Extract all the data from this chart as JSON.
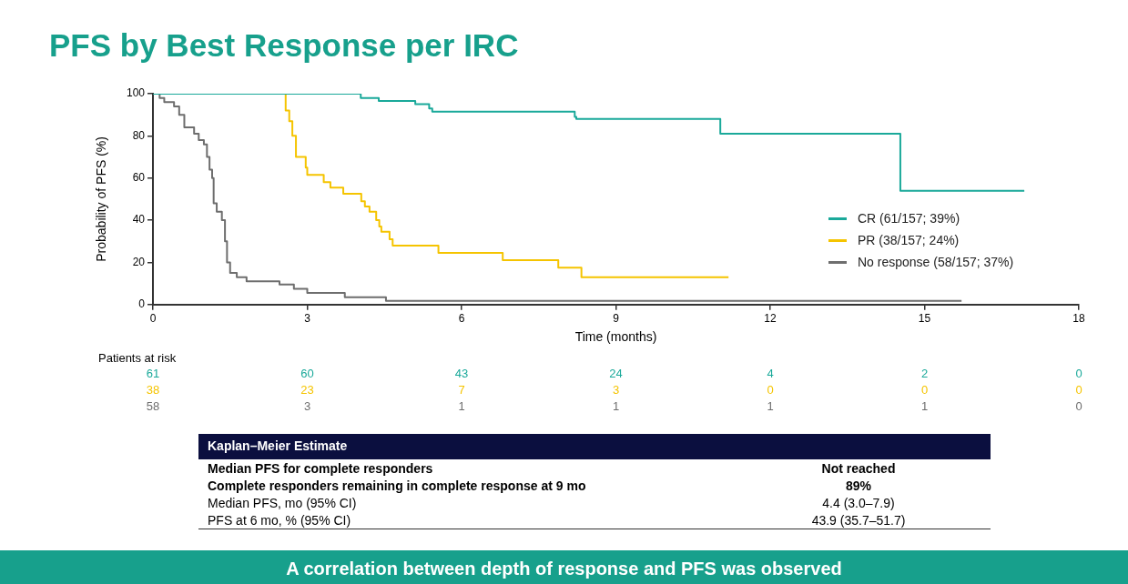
{
  "chart_data": {
    "type": "step",
    "title": "PFS by Best Response per IRC",
    "xlabel": "Time (months)",
    "ylabel": "Probability of PFS (%)",
    "xlim": [
      0,
      18
    ],
    "xticks": [
      0,
      3,
      6,
      9,
      12,
      15,
      18
    ],
    "ylim": [
      0,
      100
    ],
    "yticks": [
      0,
      20,
      40,
      60,
      80,
      100
    ],
    "legend": "right",
    "series": [
      {
        "name": "CR (61/157; 39%)",
        "color": "#1aa99a",
        "x": [
          0,
          4.04,
          4.39,
          5.1,
          5.37,
          5.43,
          8.2,
          8.23,
          11.03,
          14.53,
          16.94
        ],
        "values": [
          100,
          98,
          96.5,
          95,
          93,
          91.5,
          89,
          88,
          81,
          54,
          54
        ]
      },
      {
        "name": "PR (38/157; 24%)",
        "color": "#f5c400",
        "x": [
          2.58,
          2.58,
          2.65,
          2.71,
          2.78,
          2.97,
          3.0,
          3.32,
          3.45,
          3.7,
          4.05,
          4.12,
          4.21,
          4.34,
          4.4,
          4.44,
          4.6,
          4.66,
          5.55,
          6.8,
          7.88,
          8.33,
          11.19
        ],
        "values": [
          100,
          92,
          87,
          80,
          70,
          65,
          61.5,
          58,
          55.5,
          52.5,
          49,
          46.5,
          44,
          40,
          37,
          34.5,
          31,
          28,
          24.5,
          21,
          17.5,
          13,
          13
        ]
      },
      {
        "name": "No response (58/157; 37%)",
        "color": "#6e6e6e",
        "x": [
          0,
          0.13,
          0.22,
          0.41,
          0.51,
          0.61,
          0.8,
          0.89,
          0.99,
          1.05,
          1.1,
          1.15,
          1.18,
          1.24,
          1.34,
          1.4,
          1.44,
          1.5,
          1.63,
          1.82,
          2.46,
          2.74,
          3.0,
          3.73,
          4.53,
          15.72
        ],
        "values": [
          100,
          98,
          96,
          94,
          90,
          84,
          81,
          78,
          76,
          70,
          64,
          60,
          48,
          44,
          40,
          30,
          20,
          15,
          13,
          11,
          9.5,
          7.5,
          5.5,
          3.5,
          1.7,
          1.7
        ]
      }
    ],
    "annotations": [
      "Patients at risk",
      "61",
      "60",
      "43",
      "24",
      "4",
      "2",
      "0",
      "38",
      "23",
      "7",
      "3",
      "0",
      "0",
      "0",
      "58",
      "3",
      "1",
      "1",
      "1",
      "1",
      "0",
      "Kaplan–Meier Estimate",
      "Median PFS for complete responders",
      "Not reached",
      "Complete responders remaining in complete response at 9 mo",
      "89%",
      "Median PFS, mo (95% CI)",
      "4.4 (3.0–7.9)",
      "PFS at 6 mo, % (95% CI)",
      "43.9 (35.7–51.7)",
      "A correlation between depth of response and PFS was observed"
    ]
  }
}
